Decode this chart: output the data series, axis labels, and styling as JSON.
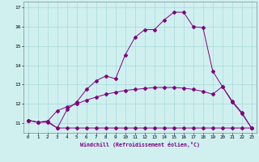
{
  "xlabel": "Windchill (Refroidissement éolien,°C)",
  "xlim": [
    -0.5,
    23.5
  ],
  "ylim": [
    10.5,
    17.3
  ],
  "xtick_values": [
    0,
    1,
    2,
    3,
    4,
    5,
    6,
    7,
    8,
    9,
    10,
    11,
    12,
    13,
    14,
    15,
    16,
    17,
    18,
    19,
    20,
    21,
    22,
    23
  ],
  "ytick_values": [
    11,
    12,
    13,
    14,
    15,
    16,
    17
  ],
  "background_color": "#d0f0f0",
  "grid_color": "#a8d8d8",
  "line_color": "#800080",
  "series1_x": [
    0,
    1,
    2,
    3,
    4,
    5,
    6,
    7,
    8,
    9,
    10,
    11,
    12,
    13,
    14,
    15,
    16,
    17,
    18,
    19,
    20,
    21,
    22,
    23
  ],
  "series1_y": [
    11.15,
    11.05,
    11.05,
    10.75,
    10.75,
    10.75,
    10.75,
    10.75,
    10.75,
    10.75,
    10.75,
    10.75,
    10.75,
    10.75,
    10.75,
    10.75,
    10.75,
    10.75,
    10.75,
    10.75,
    10.75,
    10.75,
    10.75,
    10.75
  ],
  "series2_x": [
    0,
    1,
    2,
    3,
    4,
    5,
    6,
    7,
    8,
    9,
    10,
    11,
    12,
    13,
    14,
    15,
    16,
    17,
    18,
    19,
    20,
    21,
    22,
    23
  ],
  "series2_y": [
    11.15,
    11.05,
    11.1,
    11.65,
    11.85,
    12.0,
    12.2,
    12.35,
    12.5,
    12.6,
    12.7,
    12.75,
    12.8,
    12.85,
    12.85,
    12.85,
    12.82,
    12.75,
    12.65,
    12.5,
    12.9,
    12.15,
    11.55,
    10.75
  ],
  "series3_x": [
    0,
    1,
    2,
    3,
    4,
    5,
    6,
    7,
    8,
    9,
    10,
    11,
    12,
    13,
    14,
    15,
    16,
    17,
    18,
    19,
    20,
    21,
    22,
    23
  ],
  "series3_y": [
    11.15,
    11.05,
    11.1,
    10.75,
    11.7,
    12.1,
    12.75,
    13.2,
    13.45,
    13.3,
    14.55,
    15.45,
    15.85,
    15.85,
    16.35,
    16.75,
    16.75,
    16.0,
    15.95,
    13.7,
    12.9,
    12.1,
    11.5,
    10.75
  ],
  "markersize": 2.0,
  "linewidth": 0.7
}
